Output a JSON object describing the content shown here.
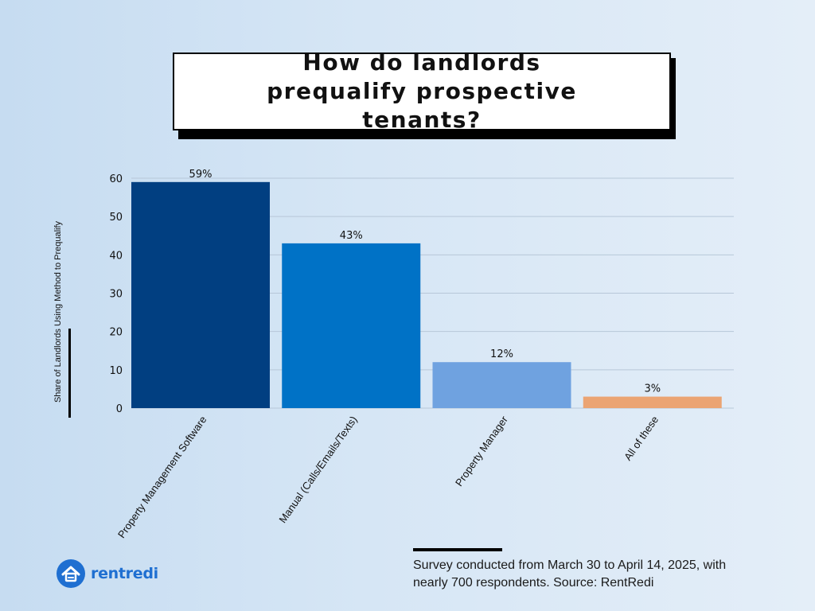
{
  "chart_data": {
    "type": "bar",
    "title": "How do landlords prequalify prospective tenants?",
    "ylabel": "Share of Landlords Using Method to Prequalify",
    "xlabel": "",
    "ylim": [
      0,
      60
    ],
    "yticks": [
      0,
      10,
      20,
      30,
      40,
      50,
      60
    ],
    "grid": true,
    "categories": [
      "Property Management Software",
      "Manual (Calls/Emails/Texts)",
      "Property Manager",
      "All of these"
    ],
    "values": [
      59,
      43,
      12,
      3
    ],
    "data_labels": [
      "59%",
      "43%",
      "12%",
      "3%"
    ],
    "colors": [
      "#013f81",
      "#0072c6",
      "#6fa2e0",
      "#eba473"
    ]
  },
  "footer": {
    "note": "Survey conducted from March 30 to April 14, 2025, with nearly 700 respondents. Source: RentRedi"
  },
  "brand": {
    "name": "rentredi",
    "color": "#1f6fd1"
  }
}
